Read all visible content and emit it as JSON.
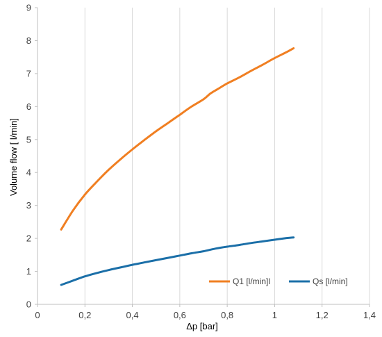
{
  "chart_data": {
    "type": "line",
    "xlabel": "Δp [bar]",
    "ylabel": "Volume flow   [ l/min]",
    "xlim": [
      0,
      1.4
    ],
    "ylim": [
      0,
      9
    ],
    "xticks": [
      0,
      0.2,
      0.4,
      0.6,
      0.8,
      1,
      1.2,
      1.4
    ],
    "yticks": [
      0,
      1,
      2,
      3,
      4,
      5,
      6,
      7,
      8,
      9
    ],
    "xtick_labels": [
      "0",
      "0,2",
      "0,4",
      "0,6",
      "0,8",
      "1",
      "1,2",
      "1,4"
    ],
    "ytick_labels": [
      "0",
      "1",
      "2",
      "3",
      "4",
      "5",
      "6",
      "7",
      "8",
      "9"
    ],
    "grid": "vertical",
    "legend_position": "bottom-right",
    "series": [
      {
        "name": "Q1 [l/min]l",
        "color": "#f07f22",
        "x": [
          0.1,
          0.15,
          0.2,
          0.25,
          0.3,
          0.35,
          0.4,
          0.45,
          0.5,
          0.55,
          0.6,
          0.65,
          0.7,
          0.73,
          0.76,
          0.8,
          0.85,
          0.9,
          0.95,
          1.0,
          1.05,
          1.08
        ],
        "y": [
          2.27,
          2.85,
          3.33,
          3.72,
          4.08,
          4.4,
          4.7,
          4.98,
          5.25,
          5.5,
          5.75,
          6.0,
          6.22,
          6.4,
          6.53,
          6.7,
          6.88,
          7.08,
          7.27,
          7.47,
          7.65,
          7.77
        ]
      },
      {
        "name": "Qs [l/min]",
        "color": "#1b6fa8",
        "x": [
          0.1,
          0.15,
          0.2,
          0.25,
          0.3,
          0.35,
          0.4,
          0.45,
          0.5,
          0.55,
          0.6,
          0.65,
          0.7,
          0.75,
          0.8,
          0.85,
          0.9,
          0.95,
          1.0,
          1.05,
          1.08
        ],
        "y": [
          0.59,
          0.72,
          0.85,
          0.95,
          1.04,
          1.12,
          1.2,
          1.27,
          1.34,
          1.41,
          1.48,
          1.55,
          1.61,
          1.69,
          1.75,
          1.8,
          1.86,
          1.91,
          1.96,
          2.01,
          2.03
        ]
      }
    ]
  }
}
